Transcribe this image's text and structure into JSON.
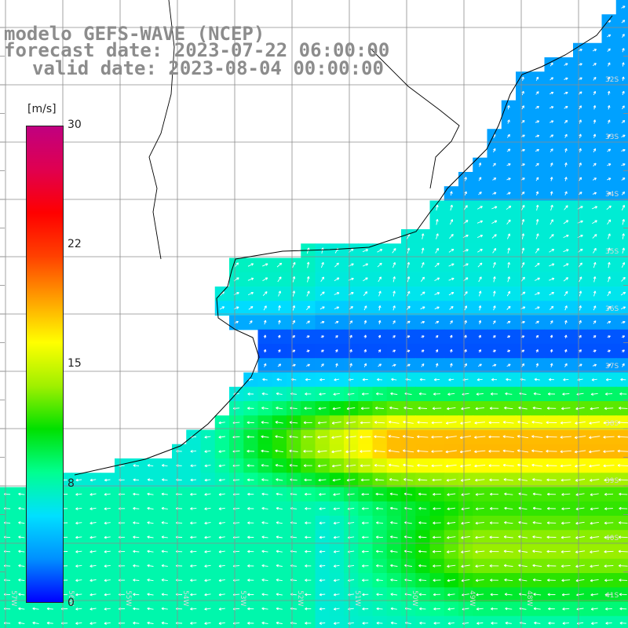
{
  "title": {
    "line1": "modelo GEFS-WAVE (NCEP)",
    "line2": "forecast date: 2023-07-22 06:00:00",
    "line3": "valid date: 2023-08-04 00:00:00"
  },
  "colorbar": {
    "unit": "[m/s]",
    "ticks": [
      "30",
      "22",
      "15",
      "8",
      "0"
    ],
    "tick_values": [
      30,
      22,
      15,
      8,
      0
    ],
    "range": [
      0,
      30
    ],
    "colors": [
      "#0000ff",
      "#0090ff",
      "#00e0ff",
      "#00ff90",
      "#00e000",
      "#a0f000",
      "#ffff00",
      "#ffa000",
      "#ff4000",
      "#ff0000",
      "#e00050",
      "#c00080"
    ]
  },
  "lat_labels": [
    "32S",
    "33S",
    "34S",
    "35S",
    "36S",
    "37S",
    "38S",
    "39S",
    "40S",
    "41S"
  ],
  "lon_labels": [
    "57W",
    "56W",
    "55W",
    "54W",
    "53W",
    "52W",
    "51W",
    "50W",
    "49W",
    "48W"
  ],
  "colors": {
    "land": "#ffffff",
    "grid": "#8c8c8c",
    "coast": "#000000",
    "arrow": "#ffffff"
  }
}
